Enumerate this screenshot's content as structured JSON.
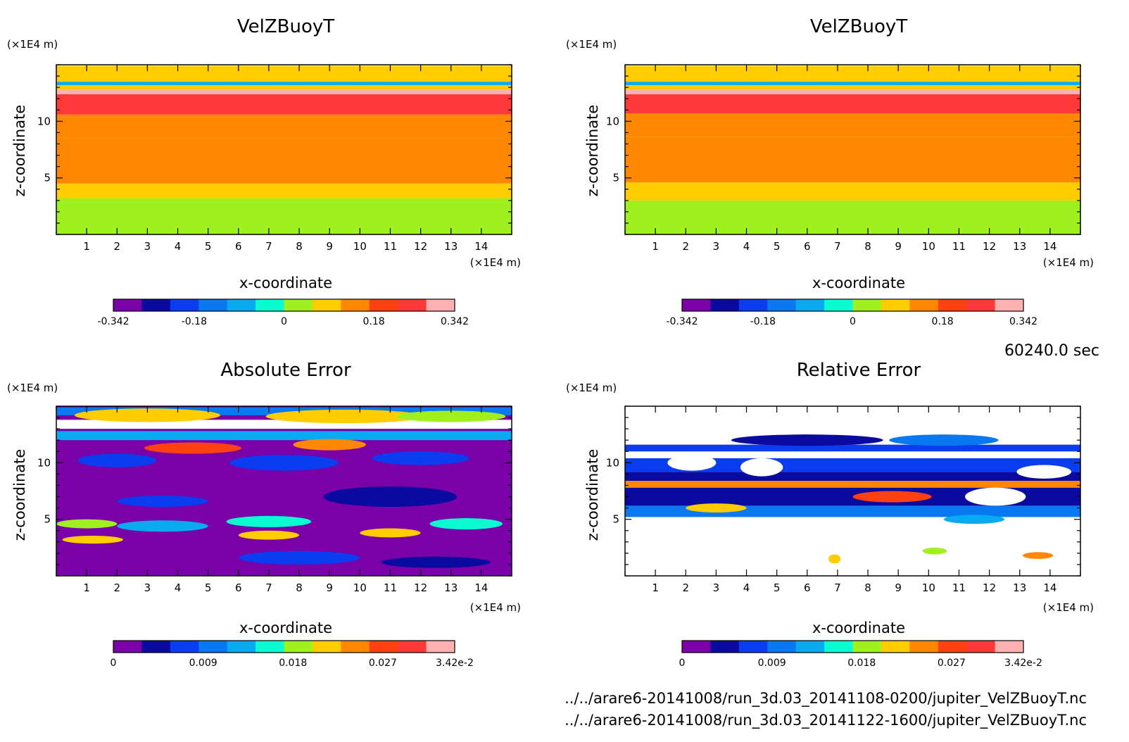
{
  "time_label": "60240.0 sec",
  "footer": [
    "../../arare6-20141008/run_3d.03_20141108-0200/jupiter_VelZBuoyT.nc",
    "../../arare6-20141008/run_3d.03_20141122-1600/jupiter_VelZBuoyT.nc"
  ],
  "colors": {
    "value_palette": [
      "#7a00a8",
      "#0a0aa0",
      "#0a3cf0",
      "#0a78f0",
      "#0aaaf0",
      "#0afad2",
      "#a0f020",
      "#ffcc00",
      "#ff8800",
      "#ff4010",
      "#ff3838",
      "#ffb0b0"
    ],
    "white": "#ffffff"
  },
  "chart_data": [
    {
      "type": "heatmap",
      "title": "VelZBuoyT",
      "xlabel": "x-coordinate",
      "ylabel": "z-coordinate",
      "x_unit": "(×1E4 m)",
      "y_unit": "(×1E4 m)",
      "xlim": [
        0,
        15
      ],
      "ylim": [
        0,
        15
      ],
      "x_ticks": [
        1,
        2,
        3,
        4,
        5,
        6,
        7,
        8,
        9,
        10,
        11,
        12,
        13,
        14
      ],
      "y_ticks": [
        5,
        10
      ],
      "colorbar": {
        "range": [
          -0.342,
          0.342
        ],
        "tick_values": [
          -0.342,
          -0.18,
          0,
          0.18,
          0.342
        ],
        "tick_labels": [
          "-0.342",
          "-0.18",
          "0",
          "0.18",
          "0.342"
        ]
      },
      "bands": [
        {
          "z": [
            0,
            3.2
          ],
          "value": 0
        },
        {
          "z": [
            3.2,
            4.5
          ],
          "value": 0.06
        },
        {
          "z": [
            4.5,
            8.5
          ],
          "value": 0.12
        },
        {
          "z": [
            8.5,
            10.6
          ],
          "value": 0.17
        },
        {
          "z": [
            10.6,
            12.4
          ],
          "value": 0.25
        },
        {
          "z": [
            12.4,
            12.8
          ],
          "value": 0.33
        },
        {
          "z": [
            12.8,
            13.2
          ],
          "value": 0.06
        },
        {
          "z": [
            13.2,
            13.5
          ],
          "value": -0.11
        },
        {
          "z": [
            13.5,
            14.9
          ],
          "value": 0.06
        }
      ]
    },
    {
      "type": "heatmap",
      "title": "VelZBuoyT",
      "xlabel": "x-coordinate",
      "ylabel": "z-coordinate",
      "x_unit": "(×1E4 m)",
      "y_unit": "(×1E4 m)",
      "xlim": [
        0,
        15
      ],
      "ylim": [
        0,
        15
      ],
      "x_ticks": [
        1,
        2,
        3,
        4,
        5,
        6,
        7,
        8,
        9,
        10,
        11,
        12,
        13,
        14
      ],
      "y_ticks": [
        5,
        10
      ],
      "colorbar": {
        "range": [
          -0.342,
          0.342
        ],
        "tick_values": [
          -0.342,
          -0.18,
          0,
          0.18,
          0.342
        ],
        "tick_labels": [
          "-0.342",
          "-0.18",
          "0",
          "0.18",
          "0.342"
        ]
      },
      "bands": [
        {
          "z": [
            0,
            3.0
          ],
          "value": 0
        },
        {
          "z": [
            3.0,
            4.6
          ],
          "value": 0.06
        },
        {
          "z": [
            4.6,
            8.6
          ],
          "value": 0.12
        },
        {
          "z": [
            8.6,
            10.7
          ],
          "value": 0.17
        },
        {
          "z": [
            10.7,
            12.4
          ],
          "value": 0.25
        },
        {
          "z": [
            12.4,
            12.8
          ],
          "value": 0.33
        },
        {
          "z": [
            12.8,
            13.2
          ],
          "value": 0.06
        },
        {
          "z": [
            13.2,
            13.5
          ],
          "value": -0.11
        },
        {
          "z": [
            13.5,
            14.9
          ],
          "value": 0.06
        }
      ]
    },
    {
      "type": "heatmap",
      "title": "Absolute Error",
      "xlabel": "x-coordinate",
      "ylabel": "z-coordinate",
      "x_unit": "(×1E4 m)",
      "y_unit": "(×1E4 m)",
      "xlim": [
        0,
        15
      ],
      "ylim": [
        0,
        15
      ],
      "x_ticks": [
        1,
        2,
        3,
        4,
        5,
        6,
        7,
        8,
        9,
        10,
        11,
        12,
        13,
        14
      ],
      "y_ticks": [
        5,
        10
      ],
      "colorbar": {
        "range": [
          0,
          0.0342
        ],
        "tick_values": [
          0,
          0.009,
          0.018,
          0.027,
          0.0342
        ],
        "tick_labels": [
          "0",
          "0.009",
          "0.018",
          "0.027",
          "3.42e-2"
        ]
      },
      "background_value": 0,
      "bands": [
        {
          "z": [
            12.0,
            12.8
          ],
          "value": 0.014
        },
        {
          "z": [
            13.0,
            13.8
          ],
          "value": 0.05
        },
        {
          "z": [
            14.2,
            14.9
          ],
          "value": 0.011
        }
      ],
      "features": [
        {
          "x": 3.0,
          "z": 14.2,
          "rx": 2.4,
          "rz": 0.6,
          "value": 0.02
        },
        {
          "x": 9.5,
          "z": 14.1,
          "rx": 2.6,
          "rz": 0.6,
          "value": 0.022
        },
        {
          "x": 13.0,
          "z": 14.1,
          "rx": 1.8,
          "rz": 0.5,
          "value": 0.018
        },
        {
          "x": 4.5,
          "z": 11.3,
          "rx": 1.6,
          "rz": 0.5,
          "value": 0.028
        },
        {
          "x": 9.0,
          "z": 11.6,
          "rx": 1.2,
          "rz": 0.5,
          "value": 0.025
        },
        {
          "x": 2.0,
          "z": 10.2,
          "rx": 1.3,
          "rz": 0.6,
          "value": 0.007
        },
        {
          "x": 7.5,
          "z": 10.0,
          "rx": 1.8,
          "rz": 0.7,
          "value": 0.006
        },
        {
          "x": 12.0,
          "z": 10.4,
          "rx": 1.6,
          "rz": 0.6,
          "value": 0.008
        },
        {
          "x": 11.0,
          "z": 7.0,
          "rx": 2.2,
          "rz": 0.9,
          "value": 0.005
        },
        {
          "x": 3.5,
          "z": 6.6,
          "rx": 1.5,
          "rz": 0.5,
          "value": 0.006
        },
        {
          "x": 1.0,
          "z": 4.6,
          "rx": 1.0,
          "rz": 0.4,
          "value": 0.018
        },
        {
          "x": 3.5,
          "z": 4.4,
          "rx": 1.5,
          "rz": 0.5,
          "value": 0.012
        },
        {
          "x": 7.0,
          "z": 4.8,
          "rx": 1.4,
          "rz": 0.5,
          "value": 0.016
        },
        {
          "x": 13.5,
          "z": 4.6,
          "rx": 1.2,
          "rz": 0.5,
          "value": 0.015
        },
        {
          "x": 1.2,
          "z": 3.2,
          "rx": 1.0,
          "rz": 0.35,
          "value": 0.022
        },
        {
          "x": 7.0,
          "z": 3.6,
          "rx": 1.0,
          "rz": 0.4,
          "value": 0.02
        },
        {
          "x": 11.0,
          "z": 3.8,
          "rx": 1.0,
          "rz": 0.4,
          "value": 0.02
        },
        {
          "x": 8.0,
          "z": 1.6,
          "rx": 2.0,
          "rz": 0.6,
          "value": 0.006
        },
        {
          "x": 12.5,
          "z": 1.2,
          "rx": 1.8,
          "rz": 0.5,
          "value": 0.005
        }
      ]
    },
    {
      "type": "heatmap",
      "title": "Relative Error",
      "xlabel": "x-coordinate",
      "ylabel": "z-coordinate",
      "x_unit": "(×1E4 m)",
      "y_unit": "(×1E4 m)",
      "xlim": [
        0,
        15
      ],
      "ylim": [
        0,
        15
      ],
      "x_ticks": [
        1,
        2,
        3,
        4,
        5,
        6,
        7,
        8,
        9,
        10,
        11,
        12,
        13,
        14
      ],
      "y_ticks": [
        5,
        10
      ],
      "colorbar": {
        "range": [
          0,
          0.0342
        ],
        "tick_values": [
          0,
          0.009,
          0.018,
          0.027,
          0.0342
        ],
        "tick_labels": [
          "0",
          "0.009",
          "0.018",
          "0.027",
          "3.42e-2"
        ]
      },
      "background_value": null,
      "bands": [
        {
          "z": [
            5.2,
            6.2
          ],
          "value": 0.01
        },
        {
          "z": [
            6.2,
            7.8
          ],
          "value": 0.004
        },
        {
          "z": [
            7.8,
            8.4
          ],
          "value": 0.024
        },
        {
          "z": [
            8.4,
            9.2
          ],
          "value": 0.003
        },
        {
          "z": [
            9.2,
            10.4
          ],
          "value": 0.006
        },
        {
          "z": [
            11.0,
            11.6
          ],
          "value": 0.008
        }
      ],
      "features": [
        {
          "x": 6.0,
          "z": 12.0,
          "rx": 2.5,
          "rz": 0.5,
          "value": 0.005
        },
        {
          "x": 10.5,
          "z": 12.0,
          "rx": 1.8,
          "rz": 0.5,
          "value": 0.01
        },
        {
          "x": 2.2,
          "z": 10.0,
          "rx": 0.8,
          "rz": 0.7,
          "value": null
        },
        {
          "x": 4.5,
          "z": 9.6,
          "rx": 0.7,
          "rz": 0.8,
          "value": null
        },
        {
          "x": 13.8,
          "z": 9.2,
          "rx": 0.9,
          "rz": 0.6,
          "value": null
        },
        {
          "x": 12.2,
          "z": 7.0,
          "rx": 1.0,
          "rz": 0.8,
          "value": null
        },
        {
          "x": 8.8,
          "z": 7.0,
          "rx": 1.3,
          "rz": 0.5,
          "value": 0.026
        },
        {
          "x": 3.0,
          "z": 6.0,
          "rx": 1.0,
          "rz": 0.4,
          "value": 0.022
        },
        {
          "x": 11.5,
          "z": 5.0,
          "rx": 1.0,
          "rz": 0.4,
          "value": 0.014
        },
        {
          "x": 6.9,
          "z": 1.5,
          "rx": 0.2,
          "rz": 0.4,
          "value": 0.02
        },
        {
          "x": 10.2,
          "z": 2.2,
          "rx": 0.4,
          "rz": 0.3,
          "value": 0.018
        },
        {
          "x": 13.6,
          "z": 1.8,
          "rx": 0.5,
          "rz": 0.3,
          "value": 0.024
        }
      ]
    }
  ]
}
